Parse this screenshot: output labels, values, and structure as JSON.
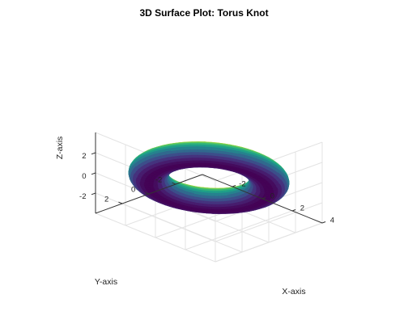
{
  "chart_data": {
    "type": "surface3d",
    "title": "3D Surface Plot: Torus Knot",
    "xlabel": "X-axis",
    "ylabel": "Y-axis",
    "zlabel": "Z-axis",
    "xlim": [
      -4,
      4
    ],
    "ylim": [
      -4,
      4
    ],
    "zlim": [
      -4,
      4
    ],
    "x_ticks": [
      -2,
      0,
      2,
      4
    ],
    "y_ticks": [
      -2,
      0,
      2
    ],
    "z_ticks": [
      -2,
      0,
      2
    ],
    "surface": {
      "shape": "torus",
      "major_radius": 3,
      "minor_radius": 1,
      "colormap": "viridis",
      "color_by": "z"
    },
    "grid": true
  }
}
